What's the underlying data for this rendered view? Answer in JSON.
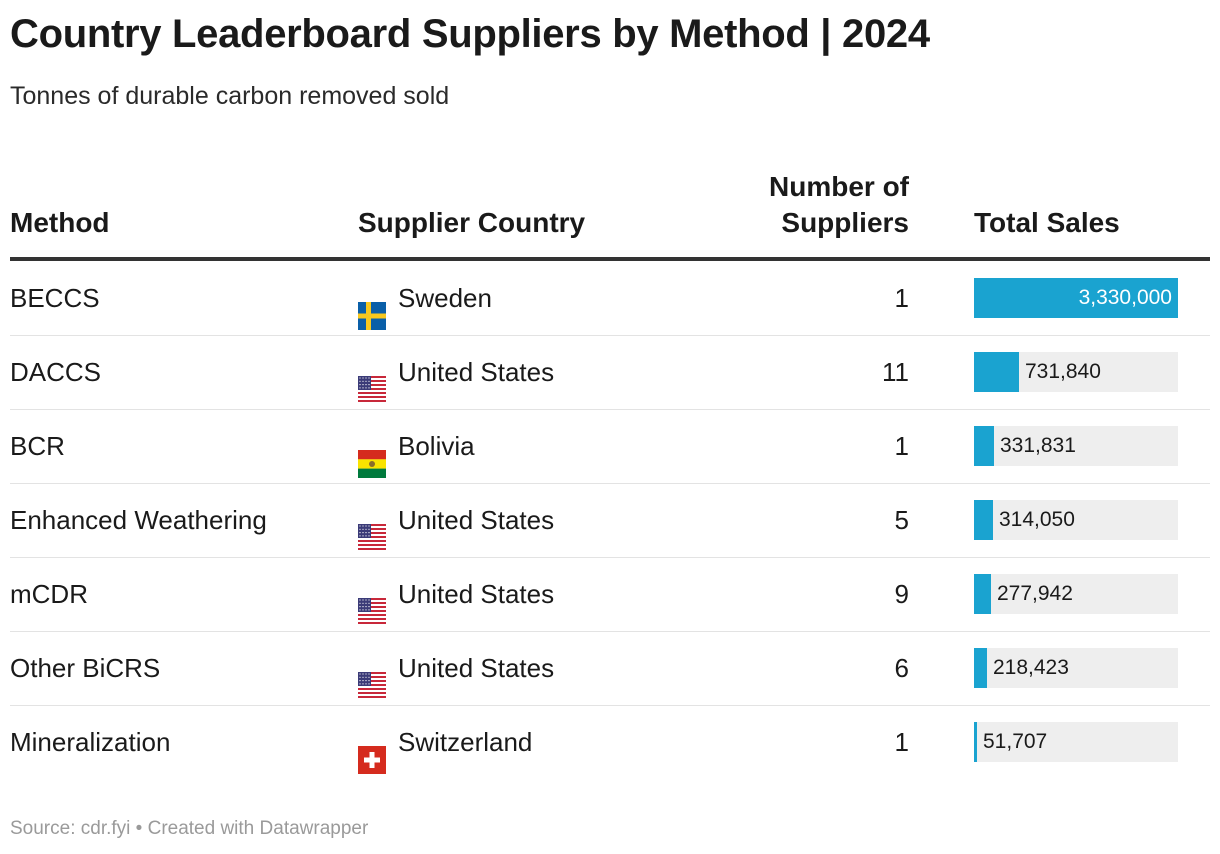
{
  "title": "Country Leaderboard Suppliers by Method | 2024",
  "subtitle": "Tonnes of durable carbon removed sold",
  "footer": "Source: cdr.fyi • Created with Datawrapper",
  "colors": {
    "bar": "#1aa3d0",
    "track": "#eeeeee",
    "rule": "#333333"
  },
  "chart_data": {
    "type": "table",
    "columns": [
      "Method",
      "Supplier Country",
      "Number of Suppliers",
      "Total Sales"
    ],
    "columns_display": [
      "Method",
      "Supplier Country",
      "Number of\nSuppliers",
      "Total Sales"
    ],
    "bar_max": 3330000,
    "rows": [
      {
        "method": "BECCS",
        "country": "Sweden",
        "flag": "sweden-flag-icon",
        "suppliers": "1",
        "sales": 3330000,
        "sales_label": "3,330,000"
      },
      {
        "method": "DACCS",
        "country": "United States",
        "flag": "us-flag-icon",
        "suppliers": "11",
        "sales": 731840,
        "sales_label": "731,840"
      },
      {
        "method": "BCR",
        "country": "Bolivia",
        "flag": "bolivia-flag-icon",
        "suppliers": "1",
        "sales": 331831,
        "sales_label": "331,831"
      },
      {
        "method": "Enhanced Weathering",
        "country": "United States",
        "flag": "us-flag-icon",
        "suppliers": "5",
        "sales": 314050,
        "sales_label": "314,050"
      },
      {
        "method": "mCDR",
        "country": "United States",
        "flag": "us-flag-icon",
        "suppliers": "9",
        "sales": 277942,
        "sales_label": "277,942"
      },
      {
        "method": "Other BiCRS",
        "country": "United States",
        "flag": "us-flag-icon",
        "suppliers": "6",
        "sales": 218423,
        "sales_label": "218,423"
      },
      {
        "method": "Mineralization",
        "country": "Switzerland",
        "flag": "switzerland-flag-icon",
        "suppliers": "1",
        "sales": 51707,
        "sales_label": "51,707"
      }
    ]
  }
}
